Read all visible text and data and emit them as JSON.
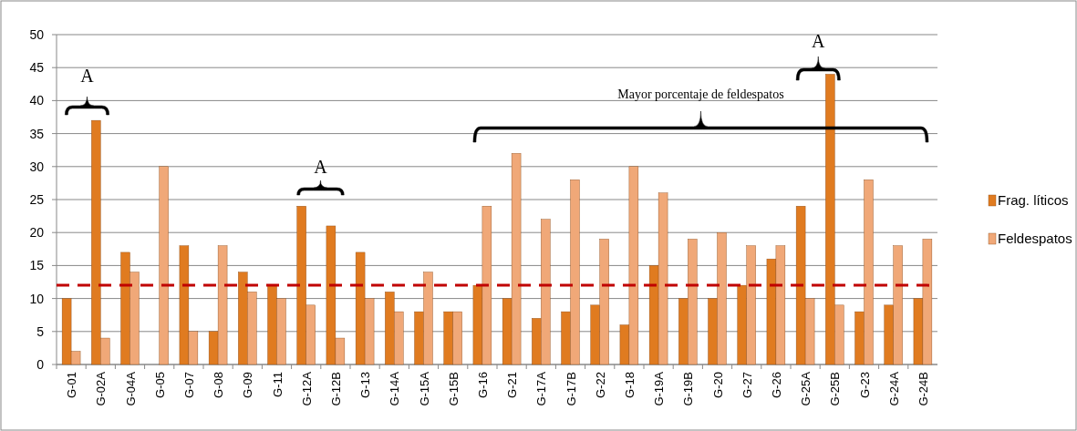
{
  "chart_data": {
    "type": "bar",
    "categories": [
      "G-01",
      "G-02A",
      "G-04A",
      "G-05",
      "G-07",
      "G-08",
      "G-09",
      "G-11",
      "G-12A",
      "G-12B",
      "G-13",
      "G-14A",
      "G-15A",
      "G-15B",
      "G-16",
      "G-21",
      "G-17A",
      "G-17B",
      "G-22",
      "G-18",
      "G-19A",
      "G-19B",
      "G-20",
      "G-27",
      "G-26",
      "G-25A",
      "G-25B",
      "G-23",
      "G-24A",
      "G-24B"
    ],
    "series": [
      {
        "name": "Frag. líticos",
        "color": "#e07b20",
        "values": [
          10,
          37,
          17,
          0,
          18,
          5,
          14,
          12,
          24,
          21,
          17,
          11,
          8,
          8,
          12,
          10,
          7,
          8,
          9,
          6,
          15,
          10,
          10,
          12,
          16,
          24,
          44,
          8,
          9,
          10
        ]
      },
      {
        "name": "Feldespatos",
        "color": "#f0a878",
        "values": [
          2,
          4,
          14,
          30,
          5,
          18,
          11,
          10,
          9,
          4,
          10,
          8,
          14,
          8,
          24,
          32,
          22,
          28,
          19,
          30,
          26,
          19,
          20,
          18,
          18,
          10,
          9,
          28,
          18,
          19
        ]
      }
    ],
    "ylim": [
      0,
      50
    ],
    "yticks": [
      0,
      5,
      10,
      15,
      20,
      25,
      30,
      35,
      40,
      45,
      50
    ],
    "grid": "y",
    "legend": "right",
    "ref_lines": [
      {
        "axis": "y",
        "value": 12,
        "color": "#c00000",
        "line_style": "dashed"
      }
    ],
    "annotations": [
      "A",
      "A",
      "Mayor porcentaje de feldespatos",
      "A"
    ]
  }
}
